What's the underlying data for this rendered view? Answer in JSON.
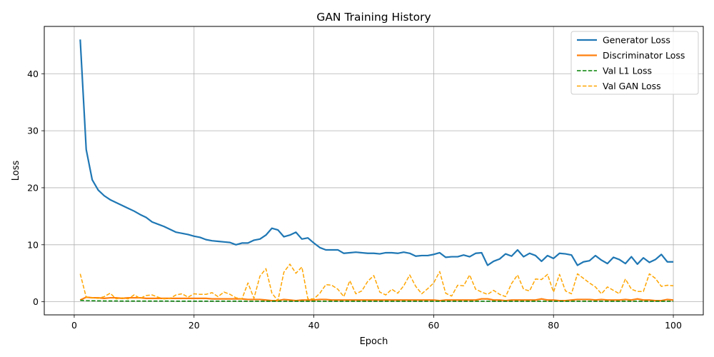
{
  "chart_data": {
    "type": "line",
    "title": "GAN Training History",
    "xlabel": "Epoch",
    "ylabel": "Loss",
    "xlim": [
      -5,
      105
    ],
    "ylim": [
      -2.3,
      48.3
    ],
    "xticks": [
      0,
      20,
      40,
      60,
      80,
      100
    ],
    "yticks": [
      0,
      10,
      20,
      30,
      40
    ],
    "grid": true,
    "legend_position": "top-right",
    "x": [
      1,
      2,
      3,
      4,
      5,
      6,
      7,
      8,
      9,
      10,
      11,
      12,
      13,
      14,
      15,
      16,
      17,
      18,
      19,
      20,
      21,
      22,
      23,
      24,
      25,
      26,
      27,
      28,
      29,
      30,
      31,
      32,
      33,
      34,
      35,
      36,
      37,
      38,
      39,
      40,
      41,
      42,
      43,
      44,
      45,
      46,
      47,
      48,
      49,
      50,
      51,
      52,
      53,
      54,
      55,
      56,
      57,
      58,
      59,
      60,
      61,
      62,
      63,
      64,
      65,
      66,
      67,
      68,
      69,
      70,
      71,
      72,
      73,
      74,
      75,
      76,
      77,
      78,
      79,
      80,
      81,
      82,
      83,
      84,
      85,
      86,
      87,
      88,
      89,
      90,
      91,
      92,
      93,
      94,
      95,
      96,
      97,
      98,
      99,
      100
    ],
    "series": [
      {
        "name": "Generator Loss",
        "color": "#1f77b4",
        "style": "solid",
        "values": [
          46.0,
          26.7,
          21.4,
          19.6,
          18.6,
          17.9,
          17.4,
          16.9,
          16.4,
          15.9,
          15.3,
          14.8,
          14.0,
          13.6,
          13.2,
          12.7,
          12.2,
          12.0,
          11.8,
          11.5,
          11.3,
          10.9,
          10.7,
          10.6,
          10.5,
          10.4,
          10.0,
          10.3,
          10.3,
          10.8,
          11.0,
          11.7,
          12.9,
          12.6,
          11.4,
          11.7,
          12.2,
          11.0,
          11.2,
          10.3,
          9.5,
          9.1,
          9.1,
          9.1,
          8.5,
          8.6,
          8.7,
          8.6,
          8.5,
          8.5,
          8.4,
          8.6,
          8.6,
          8.5,
          8.7,
          8.5,
          8.0,
          8.1,
          8.1,
          8.3,
          8.6,
          7.8,
          7.9,
          7.9,
          8.2,
          7.9,
          8.5,
          8.6,
          6.4,
          7.1,
          7.5,
          8.4,
          8.0,
          9.1,
          7.9,
          8.5,
          8.1,
          7.1,
          8.1,
          7.6,
          8.5,
          8.4,
          8.2,
          6.4,
          7.0,
          7.2,
          8.1,
          7.3,
          6.7,
          7.8,
          7.4,
          6.7,
          7.9,
          6.6,
          7.7,
          6.9,
          7.4,
          8.3,
          7.0,
          7.0
        ]
      },
      {
        "name": "Discriminator Loss",
        "color": "#ff7f0e",
        "style": "solid",
        "values": [
          0.3,
          0.8,
          0.7,
          0.7,
          0.6,
          0.7,
          0.7,
          0.6,
          0.7,
          0.7,
          0.7,
          0.6,
          0.6,
          0.6,
          0.6,
          0.6,
          0.6,
          0.6,
          0.6,
          0.6,
          0.6,
          0.6,
          0.5,
          0.5,
          0.5,
          0.5,
          0.5,
          0.5,
          0.4,
          0.4,
          0.4,
          0.3,
          0.2,
          0.2,
          0.4,
          0.3,
          0.2,
          0.3,
          0.3,
          0.3,
          0.4,
          0.4,
          0.3,
          0.3,
          0.3,
          0.3,
          0.3,
          0.3,
          0.3,
          0.3,
          0.3,
          0.3,
          0.3,
          0.3,
          0.3,
          0.3,
          0.3,
          0.3,
          0.3,
          0.3,
          0.2,
          0.3,
          0.3,
          0.3,
          0.3,
          0.3,
          0.3,
          0.5,
          0.5,
          0.3,
          0.3,
          0.2,
          0.3,
          0.3,
          0.3,
          0.3,
          0.3,
          0.5,
          0.3,
          0.3,
          0.2,
          0.2,
          0.3,
          0.4,
          0.4,
          0.4,
          0.3,
          0.4,
          0.3,
          0.3,
          0.3,
          0.4,
          0.3,
          0.5,
          0.3,
          0.3,
          0.2,
          0.2,
          0.4,
          0.3
        ]
      },
      {
        "name": "Val L1 Loss",
        "color": "#008000",
        "style": "dashed",
        "values": [
          0.25,
          0.2,
          0.18,
          0.16,
          0.15,
          0.14,
          0.14,
          0.13,
          0.13,
          0.13,
          0.12,
          0.12,
          0.12,
          0.12,
          0.12,
          0.12,
          0.11,
          0.11,
          0.11,
          0.11,
          0.11,
          0.11,
          0.11,
          0.11,
          0.11,
          0.11,
          0.11,
          0.11,
          0.1,
          0.1,
          0.1,
          0.1,
          0.1,
          0.1,
          0.1,
          0.1,
          0.1,
          0.1,
          0.1,
          0.1,
          0.1,
          0.1,
          0.1,
          0.1,
          0.1,
          0.1,
          0.1,
          0.1,
          0.1,
          0.1,
          0.1,
          0.1,
          0.1,
          0.1,
          0.1,
          0.1,
          0.1,
          0.1,
          0.1,
          0.1,
          0.1,
          0.1,
          0.1,
          0.1,
          0.1,
          0.1,
          0.1,
          0.1,
          0.1,
          0.1,
          0.1,
          0.1,
          0.1,
          0.1,
          0.1,
          0.1,
          0.1,
          0.1,
          0.1,
          0.1,
          0.1,
          0.1,
          0.1,
          0.1,
          0.1,
          0.1,
          0.1,
          0.1,
          0.1,
          0.1,
          0.1,
          0.1,
          0.1,
          0.1,
          0.1,
          0.1,
          0.1,
          0.1,
          0.1,
          0.1
        ]
      },
      {
        "name": "Val GAN Loss",
        "color": "#ffa500",
        "style": "dashed",
        "values": [
          4.9,
          0.8,
          0.7,
          0.6,
          0.9,
          1.5,
          0.5,
          0.7,
          0.5,
          1.2,
          0.6,
          1.1,
          1.2,
          0.8,
          0.5,
          0.6,
          1.2,
          1.4,
          0.8,
          1.4,
          1.3,
          1.3,
          1.6,
          0.9,
          1.7,
          1.3,
          0.7,
          0.5,
          3.3,
          0.6,
          4.5,
          5.8,
          1.5,
          0.2,
          5.2,
          6.6,
          5.0,
          6.1,
          0.5,
          0.5,
          1.5,
          3.0,
          2.9,
          2.2,
          0.9,
          3.7,
          1.4,
          1.9,
          3.6,
          4.6,
          1.7,
          1.2,
          2.2,
          1.5,
          2.8,
          4.7,
          2.7,
          1.4,
          2.3,
          3.3,
          5.3,
          1.5,
          1.0,
          2.9,
          2.8,
          4.7,
          2.2,
          1.7,
          1.3,
          2.0,
          1.3,
          0.9,
          3.2,
          4.7,
          2.2,
          1.9,
          4.0,
          3.9,
          4.8,
          1.7,
          4.8,
          1.9,
          1.4,
          4.9,
          4.1,
          3.3,
          2.6,
          1.4,
          2.6,
          2.0,
          1.4,
          4.0,
          2.2,
          1.8,
          1.8,
          4.9,
          4.1,
          2.7,
          2.9,
          2.8
        ]
      }
    ]
  }
}
